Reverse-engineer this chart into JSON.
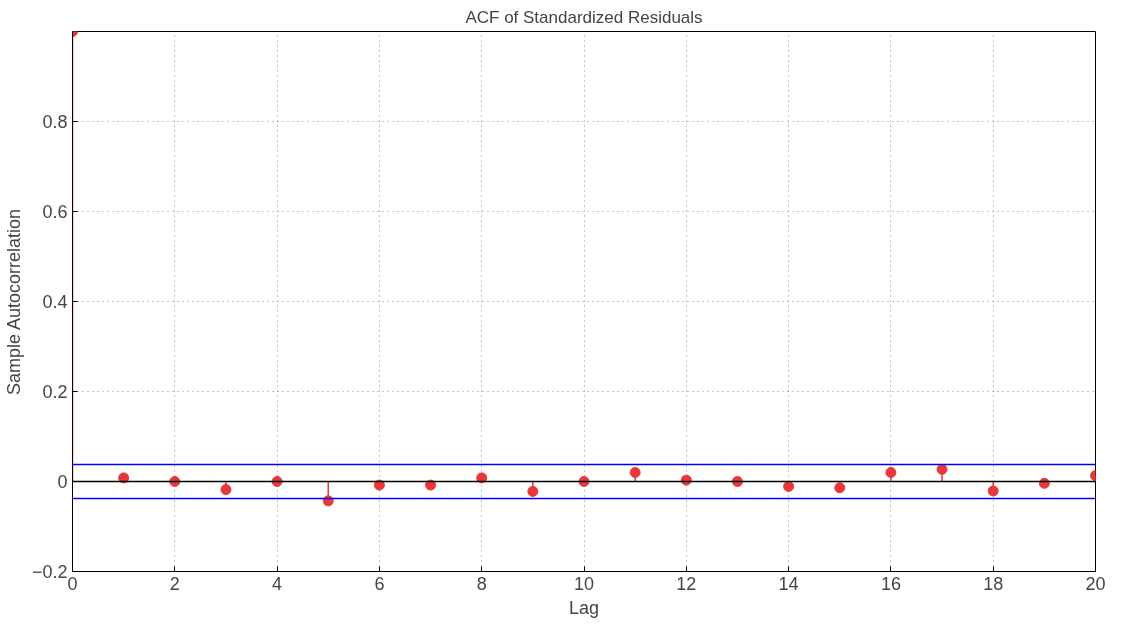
{
  "chart_data": {
    "type": "lollipop",
    "title": "ACF of Standardized Residuals",
    "xlabel": "Lag",
    "ylabel": "Sample Autocorrelation",
    "x": [
      0,
      1,
      2,
      3,
      4,
      5,
      6,
      7,
      8,
      9,
      10,
      11,
      12,
      13,
      14,
      15,
      16,
      17,
      18,
      19,
      20
    ],
    "series": [
      {
        "color": "#e8393a",
        "values": [
          1,
          0.008,
          0,
          -0.018,
          0,
          -0.043,
          -0.008,
          -0.008,
          0.008,
          -0.022,
          0,
          0.02,
          0.003,
          0,
          -0.011,
          -0.014,
          0.02,
          0.027,
          -0.021,
          -0.004,
          0.013
        ]
      }
    ],
    "marker": "circle",
    "xlim": [
      0,
      20
    ],
    "xticks": [
      0,
      2,
      4,
      6,
      8,
      10,
      12,
      14,
      16,
      18,
      20
    ],
    "ylim": [
      -0.2,
      1
    ],
    "yticks": [
      -0.2,
      0,
      0.2,
      0.4,
      0.6,
      0.8
    ],
    "ref_lines": [
      {
        "axis": "y",
        "value": 0.038,
        "color": "#0000ff"
      },
      {
        "axis": "y",
        "value": -0.038,
        "color": "#0000ff"
      },
      {
        "axis": "y",
        "value": 0,
        "color": "#000000"
      }
    ],
    "grid": true
  }
}
